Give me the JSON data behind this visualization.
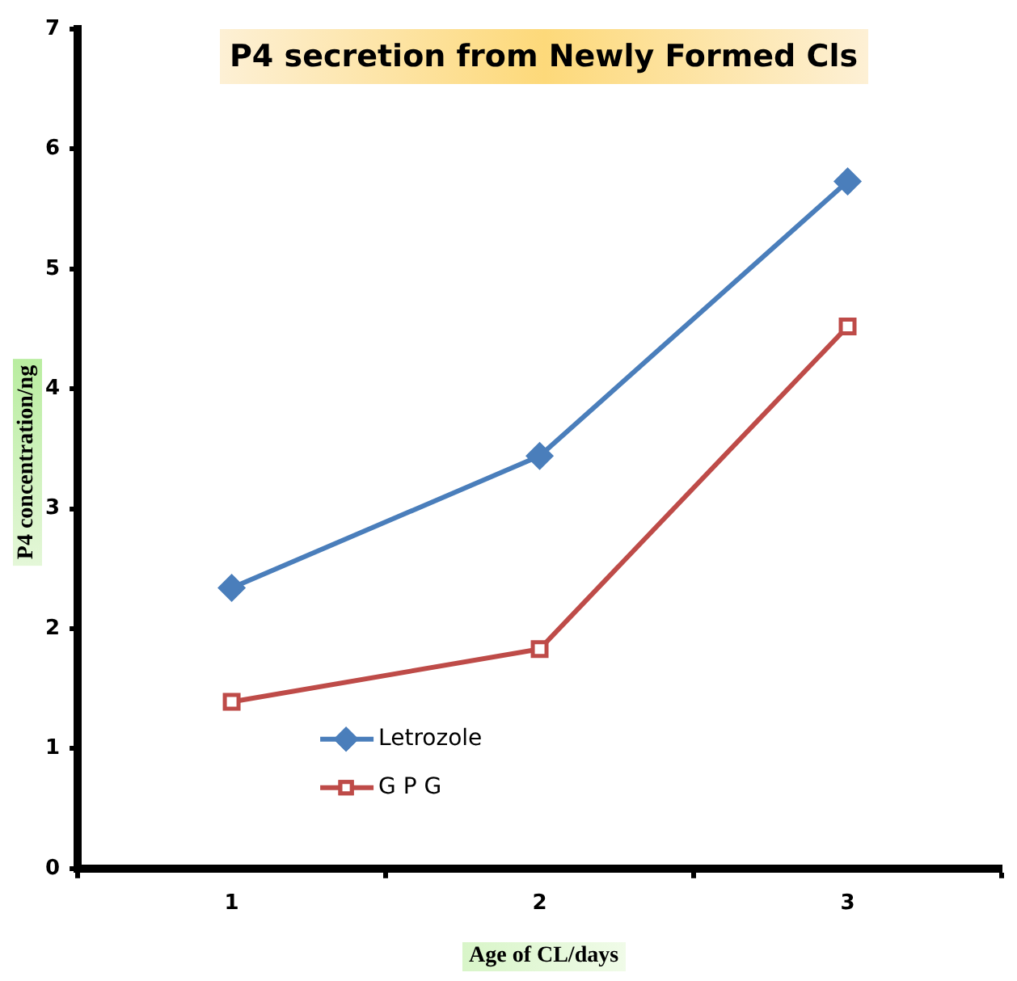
{
  "chart_data": {
    "type": "line",
    "title": "P4 secretion from Newly Formed Cls",
    "xlabel": "Age of CL/days",
    "ylabel": "P4 concentration/ng",
    "categories": [
      "1",
      "2",
      "3"
    ],
    "series": [
      {
        "name": "Letrozole",
        "color": "#4a7ebb",
        "marker": "diamond",
        "values": [
          2.34,
          3.44,
          5.73
        ]
      },
      {
        "name": "G P G",
        "color": "#be4b48",
        "marker": "square",
        "values": [
          1.39,
          1.83,
          4.52
        ]
      }
    ],
    "ylim": [
      0,
      7
    ],
    "yticks": [
      0,
      1,
      2,
      3,
      4,
      5,
      6,
      7
    ],
    "grid": false,
    "legend": "bottom left",
    "line_style": "solid"
  }
}
